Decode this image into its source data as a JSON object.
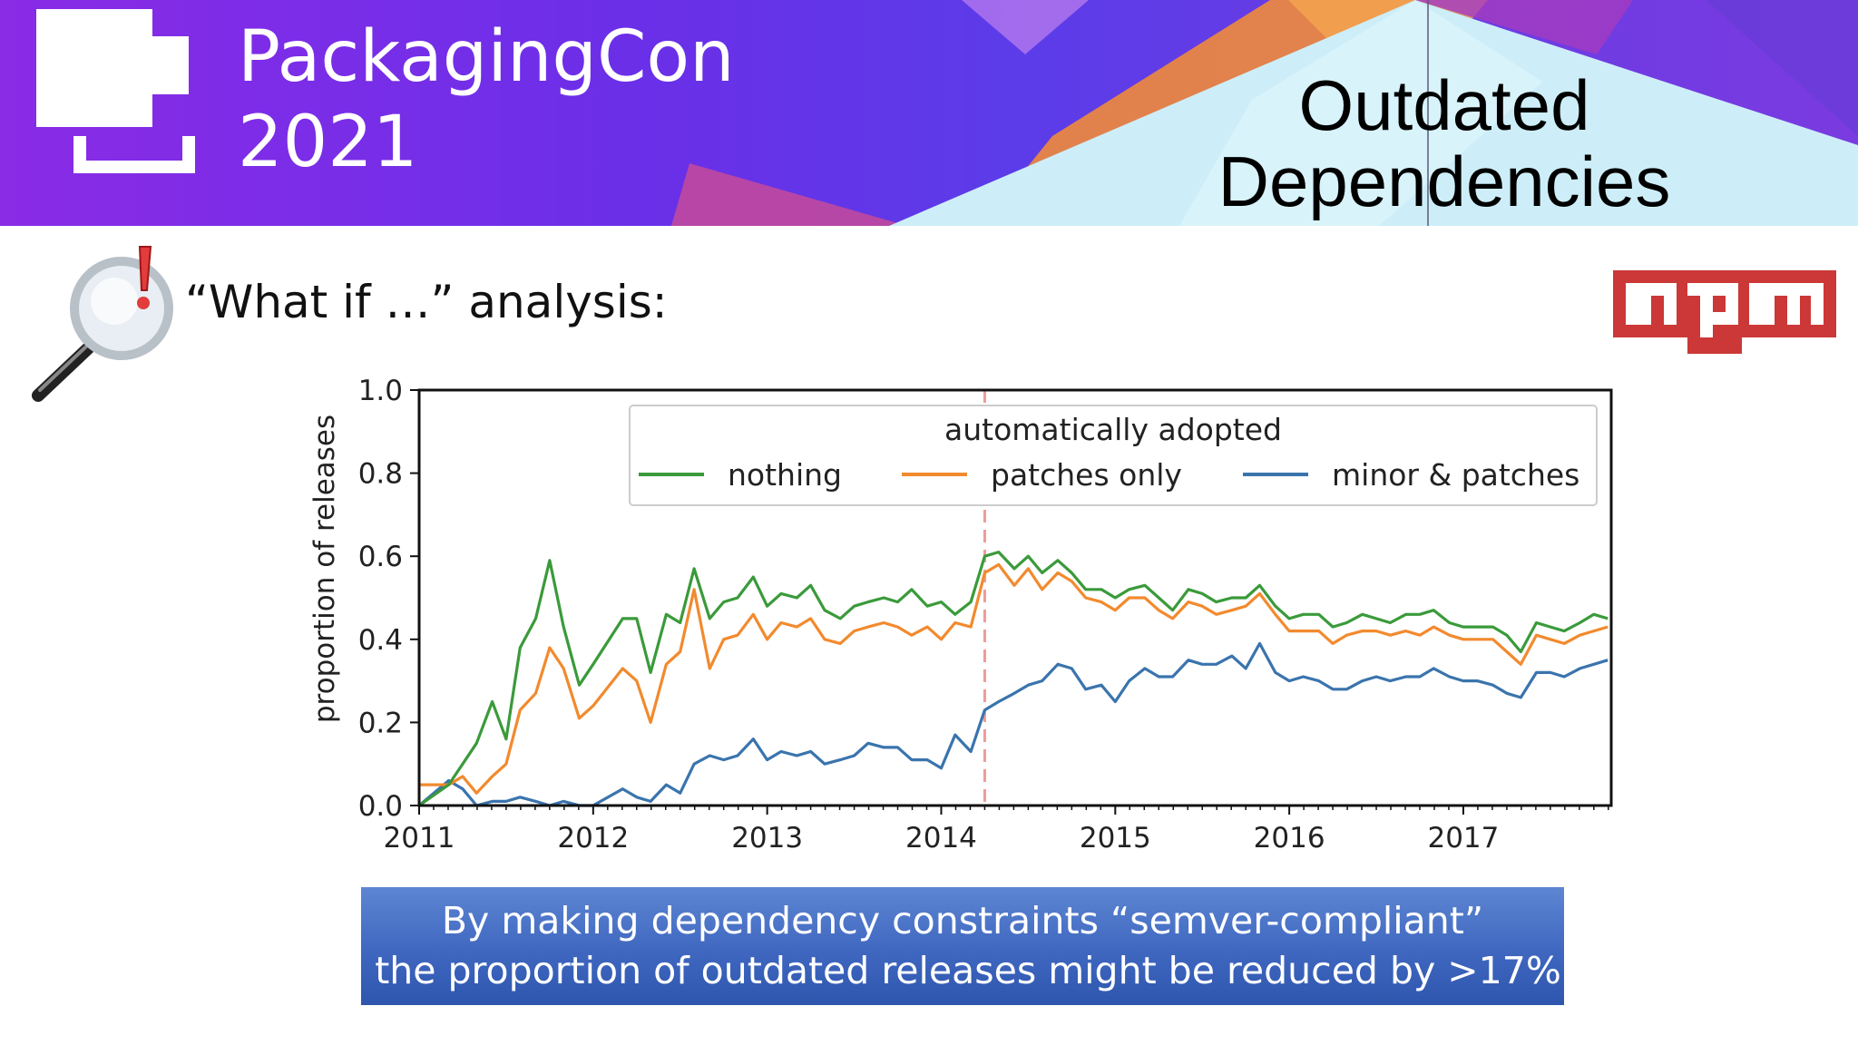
{
  "banner": {
    "logo_line1": "PackagingCon",
    "logo_line2": "2021",
    "title_line1": "Outdated",
    "title_line2": "Dependencies"
  },
  "subtitle": "“What if …” analysis:",
  "npm_logo_text": "npm",
  "colors": {
    "nothing": "#3a9a3a",
    "patches_only": "#f28a2e",
    "minor_patches": "#3a74ad",
    "marker": "#ef9a9a",
    "callout_bg": "#4470c4"
  },
  "chart_data": {
    "type": "line",
    "ylabel": "proportion of releases",
    "xlabel": "",
    "xlim": [
      2011,
      2017.85
    ],
    "ylim": [
      0,
      1
    ],
    "x_ticks": [
      "2011",
      "2012",
      "2013",
      "2014",
      "2015",
      "2016",
      "2017"
    ],
    "y_ticks": [
      "0.0",
      "0.2",
      "0.4",
      "0.6",
      "0.8",
      "1.0"
    ],
    "grid": false,
    "legend": {
      "title": "automatically adopted",
      "placement": "top-right"
    },
    "marker_line_x": 2014.25,
    "series": [
      {
        "name": "nothing",
        "x": [
          2011.0,
          2011.17,
          2011.25,
          2011.33,
          2011.42,
          2011.5,
          2011.58,
          2011.67,
          2011.75,
          2011.83,
          2011.92,
          2012.0,
          2012.17,
          2012.25,
          2012.33,
          2012.42,
          2012.5,
          2012.58,
          2012.67,
          2012.75,
          2012.83,
          2012.92,
          2013.0,
          2013.08,
          2013.17,
          2013.25,
          2013.33,
          2013.42,
          2013.5,
          2013.58,
          2013.67,
          2013.75,
          2013.83,
          2013.92,
          2014.0,
          2014.08,
          2014.17,
          2014.25,
          2014.33,
          2014.42,
          2014.5,
          2014.58,
          2014.67,
          2014.75,
          2014.83,
          2014.92,
          2015.0,
          2015.08,
          2015.17,
          2015.25,
          2015.33,
          2015.42,
          2015.5,
          2015.58,
          2015.67,
          2015.75,
          2015.83,
          2015.92,
          2016.0,
          2016.08,
          2016.17,
          2016.25,
          2016.33,
          2016.42,
          2016.5,
          2016.58,
          2016.67,
          2016.75,
          2016.83,
          2016.92,
          2017.0,
          2017.08,
          2017.17,
          2017.25,
          2017.33,
          2017.42,
          2017.5,
          2017.58,
          2017.67,
          2017.75,
          2017.83
        ],
        "values": [
          0.0,
          0.05,
          0.1,
          0.15,
          0.25,
          0.16,
          0.38,
          0.45,
          0.59,
          0.43,
          0.29,
          0.34,
          0.45,
          0.45,
          0.32,
          0.46,
          0.44,
          0.57,
          0.45,
          0.49,
          0.5,
          0.55,
          0.48,
          0.51,
          0.5,
          0.53,
          0.47,
          0.45,
          0.48,
          0.49,
          0.5,
          0.49,
          0.52,
          0.48,
          0.49,
          0.46,
          0.49,
          0.6,
          0.61,
          0.57,
          0.6,
          0.56,
          0.59,
          0.56,
          0.52,
          0.52,
          0.5,
          0.52,
          0.53,
          0.5,
          0.47,
          0.52,
          0.51,
          0.49,
          0.5,
          0.5,
          0.53,
          0.48,
          0.45,
          0.46,
          0.46,
          0.43,
          0.44,
          0.46,
          0.45,
          0.44,
          0.46,
          0.46,
          0.47,
          0.44,
          0.43,
          0.43,
          0.43,
          0.41,
          0.37,
          0.44,
          0.43,
          0.42,
          0.44,
          0.46,
          0.45
        ]
      },
      {
        "name": "patches only",
        "x": [
          2011.0,
          2011.17,
          2011.25,
          2011.33,
          2011.42,
          2011.5,
          2011.58,
          2011.67,
          2011.75,
          2011.83,
          2011.92,
          2012.0,
          2012.17,
          2012.25,
          2012.33,
          2012.42,
          2012.5,
          2012.58,
          2012.67,
          2012.75,
          2012.83,
          2012.92,
          2013.0,
          2013.08,
          2013.17,
          2013.25,
          2013.33,
          2013.42,
          2013.5,
          2013.58,
          2013.67,
          2013.75,
          2013.83,
          2013.92,
          2014.0,
          2014.08,
          2014.17,
          2014.25,
          2014.33,
          2014.42,
          2014.5,
          2014.58,
          2014.67,
          2014.75,
          2014.83,
          2014.92,
          2015.0,
          2015.08,
          2015.17,
          2015.25,
          2015.33,
          2015.42,
          2015.5,
          2015.58,
          2015.67,
          2015.75,
          2015.83,
          2015.92,
          2016.0,
          2016.08,
          2016.17,
          2016.25,
          2016.33,
          2016.42,
          2016.5,
          2016.58,
          2016.67,
          2016.75,
          2016.83,
          2016.92,
          2017.0,
          2017.08,
          2017.17,
          2017.25,
          2017.33,
          2017.42,
          2017.5,
          2017.58,
          2017.67,
          2017.75,
          2017.83
        ],
        "values": [
          0.05,
          0.05,
          0.07,
          0.03,
          0.07,
          0.1,
          0.23,
          0.27,
          0.38,
          0.33,
          0.21,
          0.24,
          0.33,
          0.3,
          0.2,
          0.34,
          0.37,
          0.52,
          0.33,
          0.4,
          0.41,
          0.46,
          0.4,
          0.44,
          0.43,
          0.45,
          0.4,
          0.39,
          0.42,
          0.43,
          0.44,
          0.43,
          0.41,
          0.43,
          0.4,
          0.44,
          0.43,
          0.56,
          0.58,
          0.53,
          0.57,
          0.52,
          0.56,
          0.54,
          0.5,
          0.49,
          0.47,
          0.5,
          0.5,
          0.47,
          0.45,
          0.49,
          0.48,
          0.46,
          0.47,
          0.48,
          0.51,
          0.46,
          0.42,
          0.42,
          0.42,
          0.39,
          0.41,
          0.42,
          0.42,
          0.41,
          0.42,
          0.41,
          0.43,
          0.41,
          0.4,
          0.4,
          0.4,
          0.37,
          0.34,
          0.41,
          0.4,
          0.39,
          0.41,
          0.42,
          0.43
        ]
      },
      {
        "name": "minor & patches",
        "x": [
          2011.0,
          2011.17,
          2011.25,
          2011.33,
          2011.42,
          2011.5,
          2011.58,
          2011.67,
          2011.75,
          2011.83,
          2011.92,
          2012.0,
          2012.17,
          2012.25,
          2012.33,
          2012.42,
          2012.5,
          2012.58,
          2012.67,
          2012.75,
          2012.83,
          2012.92,
          2013.0,
          2013.08,
          2013.17,
          2013.25,
          2013.33,
          2013.42,
          2013.5,
          2013.58,
          2013.67,
          2013.75,
          2013.83,
          2013.92,
          2014.0,
          2014.08,
          2014.17,
          2014.25,
          2014.33,
          2014.42,
          2014.5,
          2014.58,
          2014.67,
          2014.75,
          2014.83,
          2014.92,
          2015.0,
          2015.08,
          2015.17,
          2015.25,
          2015.33,
          2015.42,
          2015.5,
          2015.58,
          2015.67,
          2015.75,
          2015.83,
          2015.92,
          2016.0,
          2016.08,
          2016.17,
          2016.25,
          2016.33,
          2016.42,
          2016.5,
          2016.58,
          2016.67,
          2016.75,
          2016.83,
          2016.92,
          2017.0,
          2017.08,
          2017.17,
          2017.25,
          2017.33,
          2017.42,
          2017.5,
          2017.58,
          2017.67,
          2017.75,
          2017.83
        ],
        "values": [
          0.0,
          0.06,
          0.04,
          0.0,
          0.01,
          0.01,
          0.02,
          0.01,
          0.0,
          0.01,
          0.0,
          0.0,
          0.04,
          0.02,
          0.01,
          0.05,
          0.03,
          0.1,
          0.12,
          0.11,
          0.12,
          0.16,
          0.11,
          0.13,
          0.12,
          0.13,
          0.1,
          0.11,
          0.12,
          0.15,
          0.14,
          0.14,
          0.11,
          0.11,
          0.09,
          0.17,
          0.13,
          0.23,
          0.25,
          0.27,
          0.29,
          0.3,
          0.34,
          0.33,
          0.28,
          0.29,
          0.25,
          0.3,
          0.33,
          0.31,
          0.31,
          0.35,
          0.34,
          0.34,
          0.36,
          0.33,
          0.39,
          0.32,
          0.3,
          0.31,
          0.3,
          0.28,
          0.28,
          0.3,
          0.31,
          0.3,
          0.31,
          0.31,
          0.33,
          0.31,
          0.3,
          0.3,
          0.29,
          0.27,
          0.26,
          0.32,
          0.32,
          0.31,
          0.33,
          0.34,
          0.35
        ]
      }
    ]
  },
  "callout": {
    "line1": "By making dependency constraints “semver-compliant”",
    "line2": "the proportion of outdated releases might be reduced by >17%"
  }
}
